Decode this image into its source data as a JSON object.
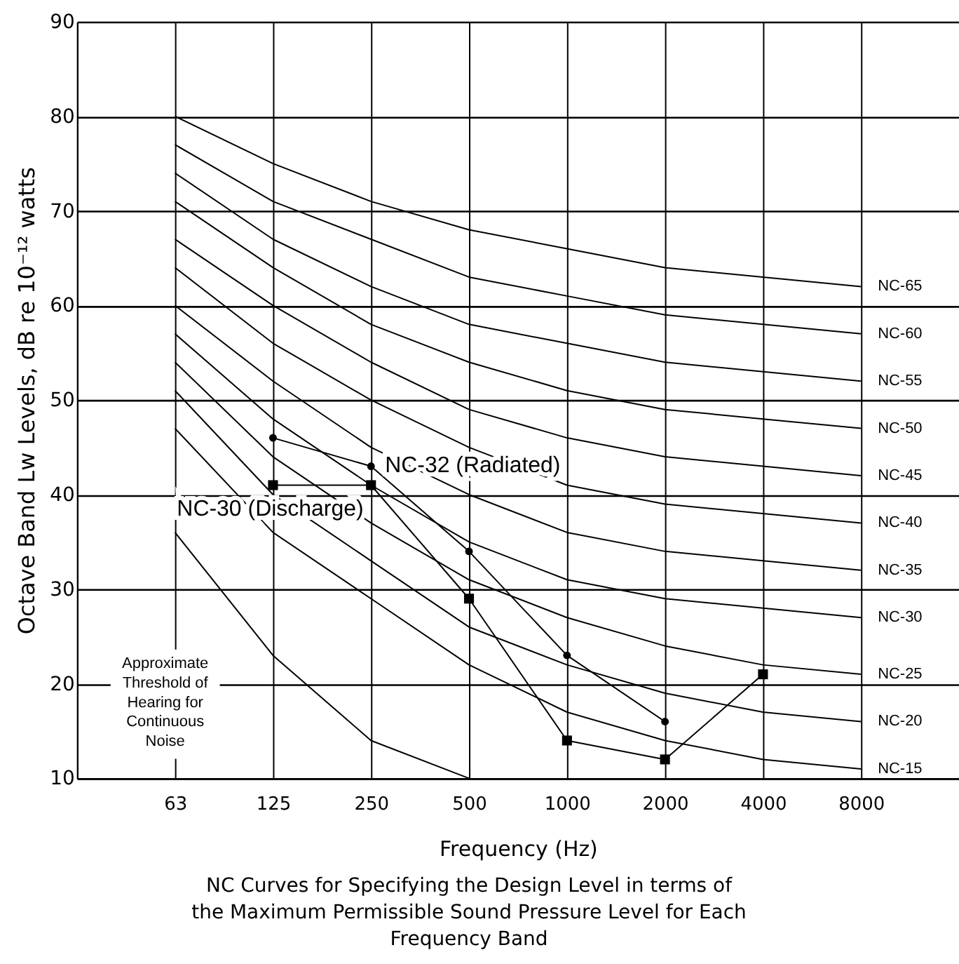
{
  "chart_data": {
    "type": "line",
    "xlabel": "Frequency (Hz)",
    "ylabel": "Octave Band Lw Levels, dB re 10⁻¹² watts",
    "categories": [
      null,
      "63",
      "125",
      "250",
      "500",
      "1000",
      "2000",
      "4000",
      "8000",
      null
    ],
    "ylim": [
      10,
      90
    ],
    "yticks": [
      10,
      20,
      30,
      40,
      50,
      60,
      70,
      80,
      90
    ],
    "grid": true,
    "legend": false,
    "series": [
      {
        "name": "NC-65",
        "color": "#000000",
        "marker": "none",
        "values": [
          null,
          80,
          75,
          71,
          68,
          66,
          64,
          63,
          62,
          null
        ]
      },
      {
        "name": "NC-60",
        "color": "#000000",
        "marker": "none",
        "values": [
          null,
          77,
          71,
          67,
          63,
          61,
          59,
          58,
          57,
          null
        ]
      },
      {
        "name": "NC-55",
        "color": "#000000",
        "marker": "none",
        "values": [
          null,
          74,
          67,
          62,
          58,
          56,
          54,
          53,
          52,
          null
        ]
      },
      {
        "name": "NC-50",
        "color": "#000000",
        "marker": "none",
        "values": [
          null,
          71,
          64,
          58,
          54,
          51,
          49,
          48,
          47,
          null
        ]
      },
      {
        "name": "NC-45",
        "color": "#000000",
        "marker": "none",
        "values": [
          null,
          67,
          60,
          54,
          49,
          46,
          44,
          43,
          42,
          null
        ]
      },
      {
        "name": "NC-40",
        "color": "#000000",
        "marker": "none",
        "values": [
          null,
          64,
          56,
          50,
          45,
          41,
          39,
          38,
          37,
          null
        ]
      },
      {
        "name": "NC-35",
        "color": "#000000",
        "marker": "none",
        "values": [
          null,
          60,
          52,
          45,
          40,
          36,
          34,
          33,
          32,
          null
        ]
      },
      {
        "name": "NC-30",
        "color": "#000000",
        "marker": "none",
        "values": [
          null,
          57,
          48,
          41,
          35,
          31,
          29,
          28,
          27,
          null
        ]
      },
      {
        "name": "NC-25",
        "color": "#000000",
        "marker": "none",
        "values": [
          null,
          54,
          44,
          37,
          31,
          27,
          24,
          22,
          21,
          null
        ]
      },
      {
        "name": "NC-20",
        "color": "#000000",
        "marker": "none",
        "values": [
          null,
          51,
          40,
          33,
          26,
          22,
          19,
          17,
          16,
          null
        ]
      },
      {
        "name": "NC-15",
        "color": "#000000",
        "marker": "none",
        "values": [
          null,
          47,
          36,
          29,
          22,
          17,
          14,
          12,
          11,
          null
        ]
      },
      {
        "color": "#000000",
        "marker": "none",
        "values": [
          null,
          36,
          23,
          14,
          10,
          null,
          null,
          null,
          null,
          null
        ]
      },
      {
        "name": "NC-32 (Radiated)",
        "color": "#000000",
        "marker": "circle",
        "values": [
          null,
          null,
          46,
          43,
          34,
          23,
          16,
          null,
          null,
          null
        ]
      },
      {
        "name": "NC-30 (Discharge)",
        "color": "#000000",
        "marker": "square",
        "values": [
          null,
          null,
          41,
          41,
          29,
          14,
          12,
          21,
          null,
          null
        ]
      }
    ],
    "annotations": [
      "Approximate Threshold of Hearing for Continuous Noise",
      "NC Curves for Specifying the Design Level in terms of the Maximum Permissible Sound Pressure Level for Each Frequency Band"
    ]
  }
}
